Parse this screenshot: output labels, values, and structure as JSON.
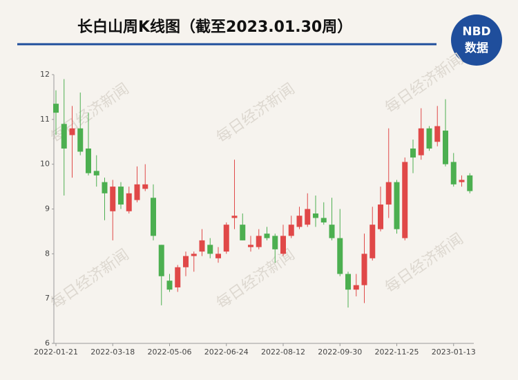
{
  "chart_data": {
    "type": "candlestick",
    "title": "长白山周K线图（截至2023.01.30周）",
    "logo": [
      "NBD",
      "数据"
    ],
    "watermark": "每日经济新闻",
    "categories": [
      "2022-01-21",
      null,
      null,
      null,
      null,
      null,
      null,
      "2022-03-18",
      null,
      null,
      null,
      null,
      null,
      null,
      "2022-05-06",
      null,
      null,
      null,
      null,
      null,
      null,
      "2022-06-24",
      null,
      null,
      null,
      null,
      null,
      null,
      "2022-08-12",
      null,
      null,
      null,
      null,
      null,
      null,
      "2022-09-30",
      null,
      null,
      null,
      null,
      null,
      null,
      "2022-11-25",
      null,
      null,
      null,
      null,
      null,
      null,
      "2023-01-13",
      null,
      null
    ],
    "open": [
      11.35,
      10.9,
      10.65,
      10.8,
      10.35,
      9.85,
      9.6,
      8.95,
      9.5,
      8.95,
      9.2,
      9.45,
      9.25,
      8.2,
      7.4,
      7.25,
      7.7,
      7.95,
      8.05,
      8.2,
      7.9,
      8.05,
      8.8,
      8.65,
      8.15,
      8.15,
      8.45,
      8.4,
      8.0,
      8.4,
      8.6,
      8.65,
      8.9,
      8.8,
      8.65,
      8.35,
      7.55,
      7.2,
      7.3,
      7.9,
      8.55,
      9.1,
      9.6,
      8.35,
      10.35,
      10.2,
      10.8,
      10.5,
      10.75,
      10.05,
      9.6,
      9.75
    ],
    "high": [
      11.65,
      11.9,
      11.3,
      11.6,
      11.15,
      10.2,
      9.7,
      9.65,
      9.6,
      9.5,
      9.95,
      10.0,
      9.55,
      8.2,
      7.55,
      7.75,
      8.05,
      8.05,
      8.55,
      8.35,
      8.15,
      8.7,
      10.1,
      8.9,
      8.4,
      8.55,
      8.6,
      8.45,
      8.65,
      8.85,
      9.05,
      9.35,
      9.3,
      9.15,
      9.25,
      9.0,
      7.6,
      7.55,
      8.45,
      9.05,
      9.5,
      10.8,
      9.65,
      10.15,
      10.55,
      11.25,
      10.85,
      11.3,
      11.45,
      10.25,
      9.75,
      9.8
    ],
    "low": [
      10.65,
      9.3,
      9.7,
      10.2,
      9.75,
      9.5,
      8.75,
      8.3,
      9.0,
      8.9,
      9.15,
      9.4,
      8.3,
      6.85,
      7.15,
      7.15,
      7.5,
      7.6,
      7.95,
      7.9,
      7.8,
      8.0,
      8.55,
      8.3,
      8.05,
      8.1,
      8.3,
      7.8,
      7.95,
      8.35,
      8.55,
      8.6,
      8.6,
      8.65,
      8.3,
      7.5,
      6.8,
      7.05,
      6.9,
      7.85,
      8.5,
      8.8,
      8.45,
      8.3,
      9.8,
      10.1,
      10.3,
      10.4,
      9.95,
      9.5,
      9.5,
      9.35
    ],
    "close": [
      11.15,
      10.35,
      10.8,
      10.28,
      9.8,
      9.75,
      9.35,
      9.5,
      9.1,
      9.35,
      9.55,
      9.55,
      8.4,
      7.5,
      7.2,
      7.7,
      7.95,
      8.0,
      8.3,
      8.0,
      8.0,
      8.65,
      8.85,
      8.3,
      8.2,
      8.4,
      8.35,
      8.1,
      8.4,
      8.65,
      8.85,
      9.0,
      8.8,
      8.7,
      8.35,
      7.55,
      7.2,
      7.3,
      8.0,
      8.65,
      9.1,
      9.6,
      8.55,
      10.05,
      10.15,
      10.8,
      10.35,
      10.85,
      10.0,
      9.55,
      9.65,
      9.4
    ],
    "up_color": "#e04848",
    "down_color": "#4caf50",
    "ylim": [
      6,
      12
    ],
    "yticks": [
      6,
      7,
      8,
      9,
      10,
      11,
      12
    ]
  }
}
